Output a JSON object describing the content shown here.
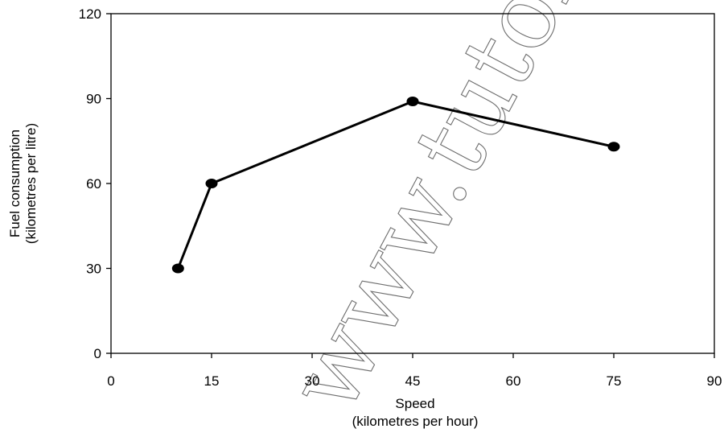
{
  "chart_data": {
    "type": "line",
    "title": "",
    "xlabel_lines": [
      "Speed",
      "(kilometres per hour)"
    ],
    "ylabel_lines": [
      "Fuel consumption",
      "(kilometres per litre)"
    ],
    "xlim": [
      0,
      90
    ],
    "ylim": [
      0,
      120
    ],
    "x_ticks": [
      0,
      15,
      30,
      45,
      60,
      75,
      90
    ],
    "y_ticks": [
      0,
      30,
      60,
      90,
      120
    ],
    "grid": false,
    "series": [
      {
        "x": [
          10,
          15,
          45,
          75
        ],
        "y": [
          30,
          60,
          89,
          73
        ]
      }
    ],
    "colors": {
      "line": "#000000",
      "marker": "#000000"
    }
  },
  "watermark": {
    "text": "www.tutorial"
  }
}
